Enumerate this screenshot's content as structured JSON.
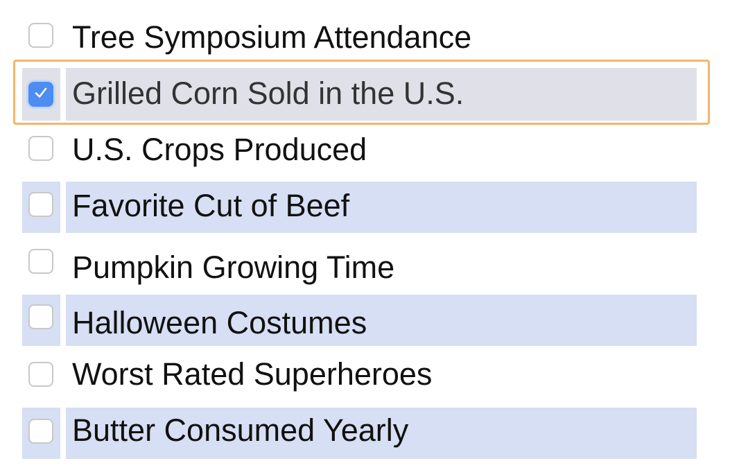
{
  "list": {
    "items": [
      {
        "label": "Tree Symposium Attendance",
        "checked": false
      },
      {
        "label": "Grilled Corn Sold in the U.S.",
        "checked": true
      },
      {
        "label": "U.S. Crops Produced",
        "checked": false
      },
      {
        "label": "Favorite Cut of Beef",
        "checked": false
      },
      {
        "label": "Pumpkin Growing Time",
        "checked": false
      },
      {
        "label": "Halloween Costumes",
        "checked": false
      },
      {
        "label": "Worst Rated Superheroes",
        "checked": false
      },
      {
        "label": "Butter Consumed Yearly",
        "checked": false
      }
    ]
  },
  "colors": {
    "row_shade": "#d6dff3",
    "selected_row": "#dfe0e8",
    "focus_outline": "#f5b56a",
    "checkbox_checked": "#4d8cf0"
  },
  "icons": {
    "checkbox_checked": "check-icon"
  }
}
